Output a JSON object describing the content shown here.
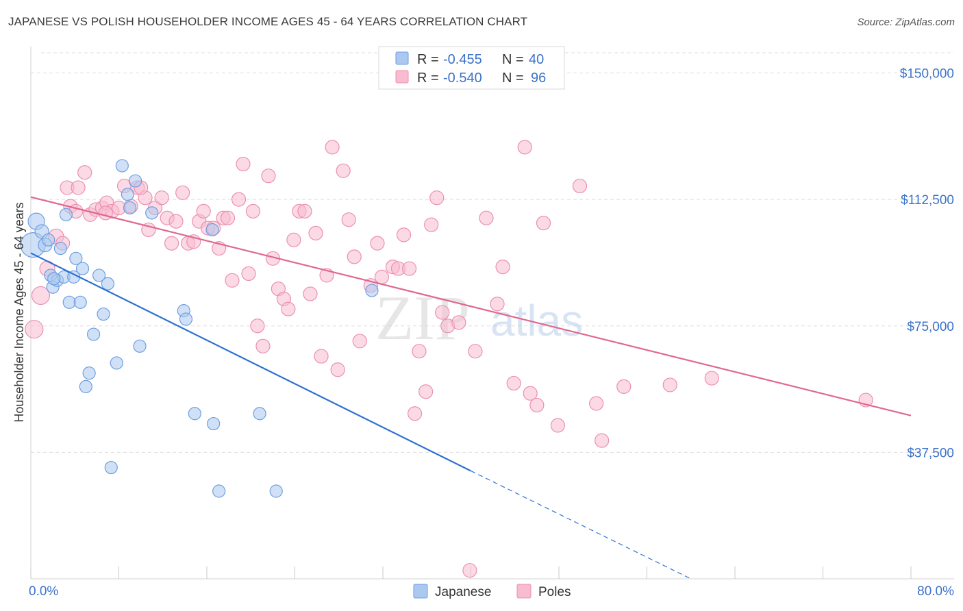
{
  "header": {
    "title": "JAPANESE VS POLISH HOUSEHOLDER INCOME AGES 45 - 64 YEARS CORRELATION CHART",
    "source": "Source: ZipAtlas.com"
  },
  "legend": {
    "rows": [
      {
        "r_label": "R =",
        "r_value": "-0.455",
        "n_label": "N =",
        "n_value": "40"
      },
      {
        "r_label": "R =",
        "r_value": "-0.540",
        "n_label": "N =",
        "n_value": "96"
      }
    ],
    "bottom": [
      "Japanese",
      "Poles"
    ]
  },
  "watermark": {
    "zip": "ZIP",
    "atlas": "atlas"
  },
  "colors": {
    "japanese_fill": "#aac8f0",
    "japanese_stroke": "#6d9ee0",
    "japanese_line": "#2e72d2",
    "poles_fill": "#f7bcd0",
    "poles_stroke": "#ec8fb0",
    "poles_line": "#e0688f",
    "grid": "#dddddd",
    "tick_text": "#3b73c8"
  },
  "chart_data": {
    "type": "scatter",
    "title": "JAPANESE VS POLISH HOUSEHOLDER INCOME AGES 45 - 64 YEARS CORRELATION CHART",
    "xlabel": "",
    "ylabel": "Householder Income Ages 45 - 64 years",
    "xlim": [
      0,
      80
    ],
    "ylim": [
      0,
      156000
    ],
    "x_tick_labels": [
      "0.0%",
      "80.0%"
    ],
    "y_ticks": [
      37500,
      75000,
      112500,
      150000
    ],
    "y_tick_labels": [
      "$37,500",
      "$75,000",
      "$112,500",
      "$150,000"
    ],
    "grid": true,
    "legend_position": "top-center",
    "series": [
      {
        "name": "Japanese",
        "r": -0.455,
        "n": 40,
        "trend": {
          "x0": 0,
          "y0": 96600,
          "x1": 40,
          "y1": 32000,
          "dashed_to_x": 60,
          "dashed_to_y": 0
        },
        "points": [
          [
            0.2,
            99000,
            18
          ],
          [
            0.5,
            106000,
            12
          ],
          [
            1.0,
            103000,
            10
          ],
          [
            1.3,
            99000,
            10
          ],
          [
            1.6,
            100500,
            9
          ],
          [
            1.8,
            90000,
            9
          ],
          [
            2.0,
            86500,
            9
          ],
          [
            2.4,
            88500,
            9
          ],
          [
            2.7,
            98000,
            9
          ],
          [
            3.0,
            89500,
            9
          ],
          [
            3.2,
            108000,
            9
          ],
          [
            3.5,
            82000,
            9
          ],
          [
            3.9,
            89500,
            9
          ],
          [
            4.1,
            95000,
            9
          ],
          [
            4.5,
            82000,
            9
          ],
          [
            4.7,
            92000,
            9
          ],
          [
            5.0,
            57000,
            9
          ],
          [
            5.3,
            61000,
            9
          ],
          [
            5.7,
            72500,
            9
          ],
          [
            6.2,
            90000,
            9
          ],
          [
            6.6,
            78500,
            9
          ],
          [
            7.0,
            87500,
            9
          ],
          [
            7.8,
            64000,
            9
          ],
          [
            8.3,
            122500,
            9
          ],
          [
            8.8,
            114000,
            9
          ],
          [
            9.0,
            110000,
            9
          ],
          [
            9.5,
            118000,
            9
          ],
          [
            9.9,
            69000,
            9
          ],
          [
            11.0,
            108500,
            9
          ],
          [
            13.9,
            79500,
            9
          ],
          [
            14.1,
            77000,
            9
          ],
          [
            14.9,
            49000,
            9
          ],
          [
            16.5,
            103500,
            9
          ],
          [
            16.6,
            46000,
            9
          ],
          [
            17.1,
            26000,
            9
          ],
          [
            20.8,
            49000,
            9
          ],
          [
            22.3,
            26000,
            9
          ],
          [
            31.0,
            85500,
            9
          ],
          [
            7.3,
            33000,
            9
          ],
          [
            2.1,
            89000,
            9
          ]
        ]
      },
      {
        "name": "Poles",
        "r": -0.54,
        "n": 96,
        "trend": {
          "x0": 0,
          "y0": 113200,
          "x1": 80,
          "y1": 48400
        },
        "points": [
          [
            0.3,
            74000,
            13
          ],
          [
            0.9,
            84000,
            13
          ],
          [
            1.5,
            92000,
            11
          ],
          [
            2.3,
            101500,
            11
          ],
          [
            2.9,
            99500,
            10
          ],
          [
            3.3,
            116000,
            10
          ],
          [
            3.6,
            110500,
            10
          ],
          [
            4.1,
            109000,
            10
          ],
          [
            4.3,
            116000,
            10
          ],
          [
            4.9,
            120500,
            10
          ],
          [
            5.4,
            108000,
            10
          ],
          [
            5.9,
            109500,
            10
          ],
          [
            6.5,
            110000,
            10
          ],
          [
            6.9,
            111500,
            10
          ],
          [
            7.4,
            109000,
            10
          ],
          [
            8.0,
            110000,
            10
          ],
          [
            8.5,
            116500,
            10
          ],
          [
            9.1,
            110500,
            10
          ],
          [
            9.7,
            116000,
            10
          ],
          [
            10.4,
            113000,
            10
          ],
          [
            10.7,
            103500,
            10
          ],
          [
            11.3,
            110000,
            10
          ],
          [
            11.9,
            113000,
            10
          ],
          [
            12.4,
            107000,
            10
          ],
          [
            12.8,
            99500,
            10
          ],
          [
            13.2,
            106000,
            10
          ],
          [
            13.8,
            114500,
            10
          ],
          [
            14.3,
            99500,
            10
          ],
          [
            14.8,
            100000,
            10
          ],
          [
            15.3,
            106000,
            10
          ],
          [
            15.7,
            109000,
            10
          ],
          [
            16.1,
            104000,
            10
          ],
          [
            16.6,
            104000,
            10
          ],
          [
            17.1,
            98000,
            10
          ],
          [
            17.5,
            107000,
            10
          ],
          [
            17.9,
            107000,
            10
          ],
          [
            18.3,
            88500,
            10
          ],
          [
            18.9,
            112500,
            10
          ],
          [
            19.3,
            123000,
            10
          ],
          [
            19.8,
            90500,
            10
          ],
          [
            20.2,
            109000,
            10
          ],
          [
            20.6,
            75000,
            10
          ],
          [
            21.1,
            69000,
            10
          ],
          [
            21.6,
            119500,
            10
          ],
          [
            22.0,
            95000,
            10
          ],
          [
            22.5,
            86000,
            10
          ],
          [
            23.0,
            83000,
            10
          ],
          [
            23.4,
            80000,
            10
          ],
          [
            23.9,
            100500,
            10
          ],
          [
            24.4,
            109000,
            10
          ],
          [
            24.9,
            109000,
            10
          ],
          [
            25.4,
            84500,
            10
          ],
          [
            25.9,
            102500,
            10
          ],
          [
            26.4,
            66000,
            10
          ],
          [
            26.9,
            90000,
            10
          ],
          [
            27.4,
            128000,
            10
          ],
          [
            27.9,
            62000,
            10
          ],
          [
            28.4,
            121000,
            10
          ],
          [
            28.9,
            106500,
            10
          ],
          [
            29.4,
            95500,
            10
          ],
          [
            29.9,
            70500,
            10
          ],
          [
            30.9,
            87000,
            10
          ],
          [
            31.5,
            99500,
            10
          ],
          [
            31.9,
            89500,
            10
          ],
          [
            32.9,
            92500,
            10
          ],
          [
            33.4,
            92000,
            10
          ],
          [
            33.9,
            102000,
            10
          ],
          [
            34.4,
            92000,
            10
          ],
          [
            34.9,
            49000,
            10
          ],
          [
            35.3,
            67500,
            10
          ],
          [
            35.9,
            55500,
            10
          ],
          [
            36.4,
            105000,
            10
          ],
          [
            36.9,
            113000,
            10
          ],
          [
            37.4,
            79000,
            10
          ],
          [
            37.9,
            75000,
            10
          ],
          [
            38.9,
            76000,
            10
          ],
          [
            39.9,
            2500,
            10
          ],
          [
            40.4,
            67500,
            10
          ],
          [
            41.4,
            107000,
            10
          ],
          [
            42.4,
            81500,
            10
          ],
          [
            42.9,
            92500,
            10
          ],
          [
            43.9,
            58000,
            10
          ],
          [
            44.9,
            128000,
            10
          ],
          [
            45.4,
            55000,
            10
          ],
          [
            46.0,
            51500,
            10
          ],
          [
            46.6,
            105500,
            10
          ],
          [
            47.9,
            45500,
            10
          ],
          [
            49.9,
            116500,
            10
          ],
          [
            51.4,
            52000,
            10
          ],
          [
            51.9,
            41000,
            10
          ],
          [
            53.9,
            57000,
            10
          ],
          [
            58.1,
            57500,
            10
          ],
          [
            61.9,
            59500,
            10
          ],
          [
            75.9,
            53000,
            10
          ],
          [
            6.8,
            108500,
            10
          ],
          [
            10.0,
            116000,
            10
          ]
        ]
      }
    ]
  }
}
